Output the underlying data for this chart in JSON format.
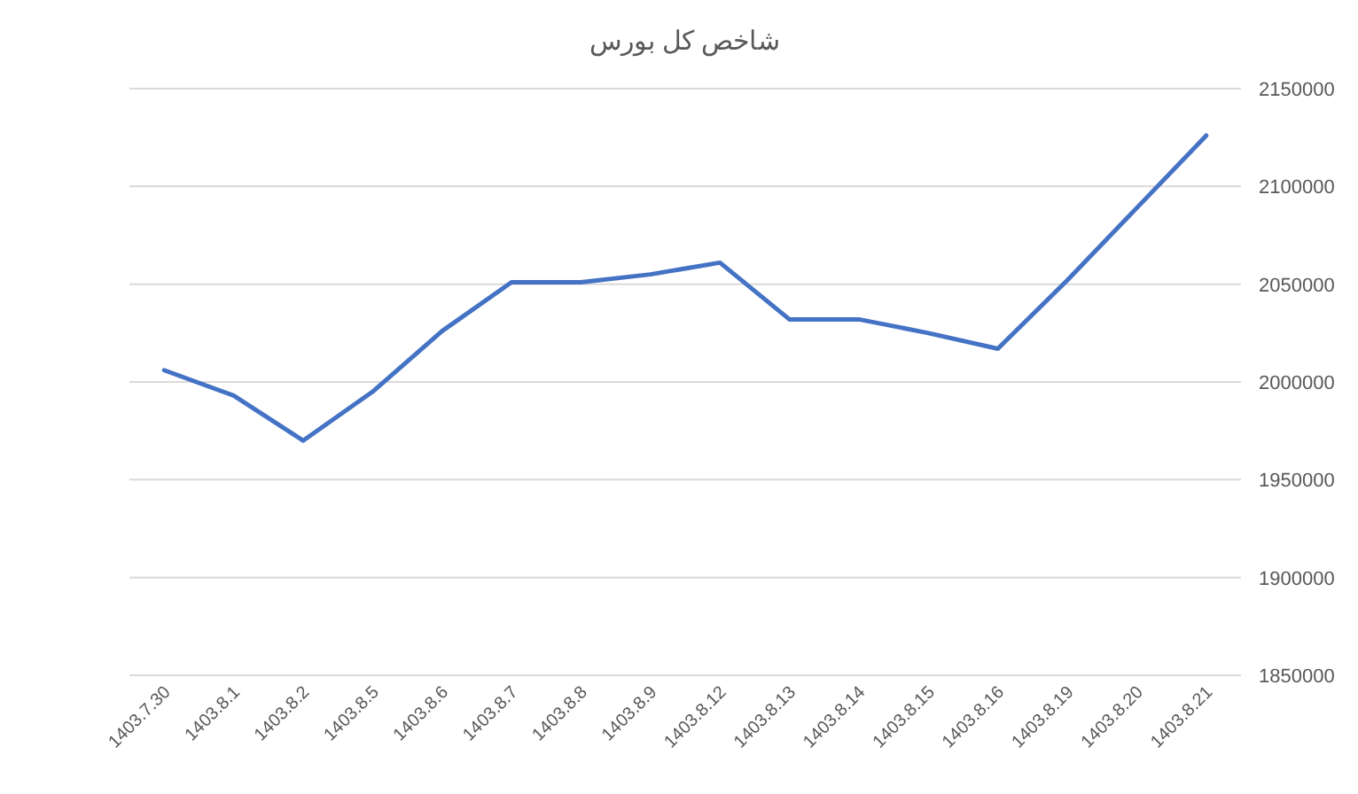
{
  "chart_data": {
    "type": "line",
    "title": "شاخص کل بورس",
    "categories": [
      "1403.7.30",
      "1403.8.1",
      "1403.8.2",
      "1403.8.5",
      "1403.8.6",
      "1403.8.7",
      "1403.8.8",
      "1403.8.9",
      "1403.8.12",
      "1403.8.13",
      "1403.8.14",
      "1403.8.15",
      "1403.8.16",
      "1403.8.19",
      "1403.8.20",
      "1403.8.21"
    ],
    "series": [
      {
        "color": "#4472c4",
        "values": [
          2006000,
          1993000,
          1970000,
          1995000,
          2026000,
          2051000,
          2051000,
          2055000,
          2061000,
          2032000,
          2032000,
          2025000,
          2017000,
          2052000,
          2089000,
          2126000
        ]
      }
    ],
    "ylim": [
      1850000,
      2150000
    ],
    "yticks": [
      1850000,
      1900000,
      1950000,
      2000000,
      2050000,
      2100000,
      2150000
    ],
    "grid": "y",
    "marker": "none",
    "line_style": "solid"
  }
}
